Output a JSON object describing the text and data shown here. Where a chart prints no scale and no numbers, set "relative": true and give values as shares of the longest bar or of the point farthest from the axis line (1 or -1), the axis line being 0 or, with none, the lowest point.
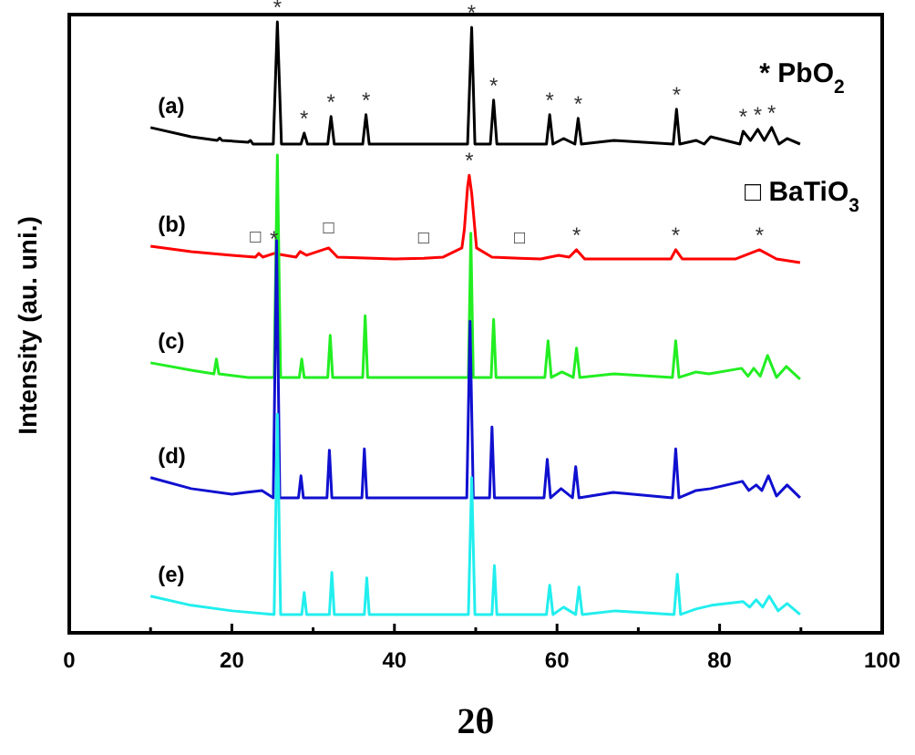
{
  "chart_data": {
    "type": "line",
    "relative": true,
    "xlabel": "2θ",
    "ylabel": "Intensity (au. uni.)",
    "xlim": [
      0,
      100
    ],
    "xticks": [
      0,
      {
        "value": 10,
        "label": null
      },
      20,
      {
        "value": 30,
        "label": null
      },
      40,
      {
        "value": 50,
        "label": null
      },
      60,
      {
        "value": 70,
        "label": null
      },
      80,
      {
        "value": 90,
        "label": null
      },
      100
    ],
    "grid": false,
    "marker": "none",
    "line_style": "solid",
    "series": [
      {
        "name": "(a)",
        "color": "#000000",
        "x": [
          10,
          15,
          18.2,
          18.5,
          18.8,
          22,
          22.3,
          22.6,
          25.1,
          25.6,
          26.1,
          28.5,
          28.9,
          29.3,
          31.8,
          32.2,
          32.6,
          36.1,
          36.5,
          36.9,
          49.0,
          49.5,
          49.9,
          51.8,
          52.2,
          52.6,
          58.7,
          59.1,
          59.5,
          60.8,
          62.2,
          62.6,
          63.0,
          67,
          74.3,
          74.7,
          75.1,
          77.1,
          78.1,
          78.9,
          82.5,
          82.9,
          83.8,
          84.7,
          85.5,
          86.4,
          87.3,
          88.3,
          89.9
        ],
        "values": [
          0.827,
          0.812,
          0.806,
          0.81,
          0.806,
          0.803,
          0.806,
          0.8,
          0.8,
          1,
          0.8,
          0.8,
          0.818,
          0.8,
          0.8,
          0.845,
          0.8,
          0.8,
          0.848,
          0.8,
          0.8,
          0.991,
          0.8,
          0.8,
          0.872,
          0.8,
          0.8,
          0.848,
          0.8,
          0.809,
          0.8,
          0.842,
          0.8,
          0.806,
          0.8,
          0.857,
          0.8,
          0.806,
          0.8,
          0.812,
          0.8,
          0.821,
          0.806,
          0.824,
          0.806,
          0.827,
          0.8,
          0.809,
          0.8
        ]
      },
      {
        "name": "(b)",
        "color": "#ff0000",
        "x": [
          10,
          15,
          20,
          22.9,
          23.3,
          23.8,
          25.2,
          27.9,
          28.4,
          29.2,
          31.9,
          33,
          40,
          43.6,
          46,
          48.3,
          48.6,
          49.0,
          49.2,
          49.5,
          49.9,
          50.1,
          52,
          55.4,
          58,
          60.2,
          61.5,
          62.4,
          63.4,
          70,
          74,
          74.6,
          75.4,
          82,
          84.9,
          87,
          89.9
        ],
        "values": [
          0.633,
          0.624,
          0.618,
          0.615,
          0.621,
          0.615,
          0.621,
          0.615,
          0.624,
          0.618,
          0.63,
          0.615,
          0.612,
          0.613,
          0.615,
          0.63,
          0.66,
          0.73,
          0.749,
          0.72,
          0.66,
          0.63,
          0.615,
          0.613,
          0.612,
          0.618,
          0.615,
          0.627,
          0.612,
          0.612,
          0.612,
          0.627,
          0.612,
          0.612,
          0.627,
          0.612,
          0.606
        ]
      },
      {
        "name": "(c)",
        "color": "#22ee22",
        "x": [
          10,
          15,
          17.8,
          18.1,
          18.4,
          22,
          25.2,
          25.6,
          26,
          28.3,
          28.6,
          28.9,
          31.8,
          32.1,
          32.4,
          36.1,
          36.4,
          36.7,
          49.1,
          49.4,
          49.7,
          51.9,
          52.2,
          52.5,
          58.5,
          58.9,
          59.3,
          60.6,
          62.0,
          62.4,
          62.8,
          67,
          74.2,
          74.6,
          75,
          77.1,
          78.7,
          82.7,
          83.5,
          84.2,
          85.0,
          85.9,
          87,
          88.2,
          89.9
        ],
        "values": [
          0.442,
          0.43,
          0.424,
          0.448,
          0.424,
          0.418,
          0.418,
          0.782,
          0.418,
          0.418,
          0.448,
          0.418,
          0.418,
          0.487,
          0.418,
          0.418,
          0.519,
          0.418,
          0.418,
          0.654,
          0.418,
          0.418,
          0.513,
          0.418,
          0.418,
          0.478,
          0.418,
          0.427,
          0.418,
          0.466,
          0.418,
          0.424,
          0.418,
          0.478,
          0.418,
          0.427,
          0.424,
          0.433,
          0.42,
          0.433,
          0.42,
          0.454,
          0.418,
          0.436,
          0.415
        ]
      },
      {
        "name": "(d)",
        "color": "#1010d0",
        "x": [
          10,
          15,
          20,
          21.7,
          23.7,
          25.1,
          25.5,
          25.9,
          28.2,
          28.5,
          28.8,
          31.7,
          32,
          32.3,
          36,
          36.3,
          36.6,
          48.9,
          49.3,
          49.7,
          51.7,
          52,
          52.3,
          58.4,
          58.8,
          59.2,
          60.5,
          61.9,
          62.3,
          62.7,
          66.9,
          74.2,
          74.6,
          75,
          77.1,
          78.9,
          82.8,
          83.6,
          84.5,
          85.2,
          86,
          87,
          88.3,
          89.9
        ],
        "values": [
          0.254,
          0.236,
          0.227,
          0.23,
          0.233,
          0.221,
          0.642,
          0.221,
          0.221,
          0.257,
          0.221,
          0.221,
          0.299,
          0.221,
          0.221,
          0.301,
          0.221,
          0.221,
          0.51,
          0.221,
          0.221,
          0.337,
          0.221,
          0.221,
          0.284,
          0.221,
          0.236,
          0.221,
          0.272,
          0.221,
          0.23,
          0.221,
          0.301,
          0.221,
          0.233,
          0.236,
          0.248,
          0.233,
          0.242,
          0.233,
          0.257,
          0.224,
          0.242,
          0.221
        ]
      },
      {
        "name": "(e)",
        "color": "#22eeee",
        "x": [
          10,
          15,
          20,
          25.2,
          25.6,
          26,
          28.6,
          28.9,
          29.2,
          32,
          32.3,
          32.6,
          36.3,
          36.6,
          36.9,
          49.1,
          49.5,
          49.9,
          52,
          52.3,
          52.6,
          58.7,
          59.1,
          59.5,
          60.8,
          62.3,
          62.7,
          63.1,
          67.2,
          74.4,
          74.8,
          75.2,
          77.1,
          79,
          82.9,
          83.7,
          84.5,
          85.3,
          86.1,
          87.2,
          88.3,
          89.9
        ],
        "values": [
          0.06,
          0.045,
          0.036,
          0.03,
          0.358,
          0.03,
          0.03,
          0.066,
          0.03,
          0.03,
          0.099,
          0.03,
          0.03,
          0.09,
          0.03,
          0.03,
          0.254,
          0.03,
          0.03,
          0.11,
          0.03,
          0.03,
          0.078,
          0.03,
          0.042,
          0.03,
          0.075,
          0.03,
          0.036,
          0.03,
          0.096,
          0.03,
          0.039,
          0.045,
          0.051,
          0.042,
          0.054,
          0.042,
          0.06,
          0.036,
          0.048,
          0.03
        ]
      }
    ],
    "annotations": [
      "* PbO$_{2}$",
      "□ BaTiO$_{3}$",
      {
        "text": "*",
        "x": 25.6,
        "y": 1
      },
      {
        "text": "*",
        "x": 28.9,
        "y": 0.818
      },
      {
        "text": "*",
        "x": 32.2,
        "y": 0.845
      },
      {
        "text": "*",
        "x": 36.5,
        "y": 0.848
      },
      {
        "text": "*",
        "x": 49.5,
        "y": 0.991
      },
      {
        "text": "*",
        "x": 52.2,
        "y": 0.872
      },
      {
        "text": "*",
        "x": 59.1,
        "y": 0.848
      },
      {
        "text": "*",
        "x": 62.6,
        "y": 0.842
      },
      {
        "text": "*",
        "x": 74.7,
        "y": 0.857
      },
      {
        "text": "*",
        "x": 82.9,
        "y": 0.821
      },
      {
        "text": "*",
        "x": 84.7,
        "y": 0.824
      },
      {
        "text": "*",
        "x": 86.4,
        "y": 0.827
      },
      {
        "text": "*",
        "x": 25.2,
        "y": 0.621
      },
      {
        "text": "*",
        "x": 49.2,
        "y": 0.749
      },
      {
        "text": "*",
        "x": 62.4,
        "y": 0.627
      },
      {
        "text": "*",
        "x": 74.6,
        "y": 0.627
      },
      {
        "text": "*",
        "x": 84.9,
        "y": 0.627
      },
      {
        "text": "□",
        "x": 22.9,
        "y": 0.615
      },
      {
        "text": "□",
        "x": 31.9,
        "y": 0.63
      },
      {
        "text": "□",
        "x": 43.6,
        "y": 0.613
      },
      {
        "text": "□",
        "x": 55.4,
        "y": 0.613
      }
    ]
  }
}
